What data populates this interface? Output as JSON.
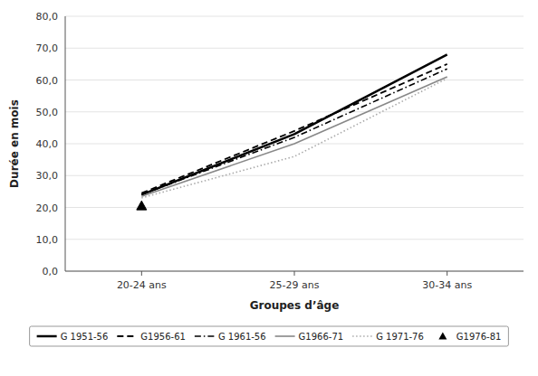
{
  "chart_data": {
    "type": "line",
    "xlabel": "Groupes d’âge",
    "ylabel": "Durée en mois",
    "categories": [
      "20-24 ans",
      "25-29 ans",
      "30-34 ans"
    ],
    "series": [
      {
        "name": "G 1951-56",
        "color": "#000000",
        "line_style": "solid",
        "values": [
          24.0,
          43.0,
          68.0
        ]
      },
      {
        "name": "G1956-61",
        "color": "#000000",
        "line_style": "dashed",
        "values": [
          24.5,
          44.0,
          65.0
        ]
      },
      {
        "name": "G 1961-56",
        "color": "#000000",
        "line_style": "dashdot",
        "values": [
          24.0,
          42.0,
          63.5
        ]
      },
      {
        "name": "G1966-71",
        "color": "#888888",
        "line_style": "solid",
        "values": [
          23.5,
          40.0,
          61.0
        ]
      },
      {
        "name": "G 1971-76",
        "color": "#aaaaaa",
        "line_style": "dotted",
        "values": [
          23.0,
          36.0,
          60.5
        ]
      },
      {
        "name": "G1976-81",
        "color": "#000000",
        "line_style": "none",
        "marker": "triangle",
        "values": [
          20.5,
          null,
          null
        ]
      }
    ],
    "ylim": [
      0,
      80
    ],
    "yticks": [
      {
        "value": 0,
        "label": "0,0"
      },
      {
        "value": 10,
        "label": "10,0"
      },
      {
        "value": 20,
        "label": "20,0"
      },
      {
        "value": 30,
        "label": "30,0"
      },
      {
        "value": 40,
        "label": "40,0"
      },
      {
        "value": 50,
        "label": "50,0"
      },
      {
        "value": 60,
        "label": "60,0"
      },
      {
        "value": 70,
        "label": "70,0"
      },
      {
        "value": 80,
        "label": "80,0"
      }
    ],
    "grid": true,
    "legend": "bottom"
  }
}
